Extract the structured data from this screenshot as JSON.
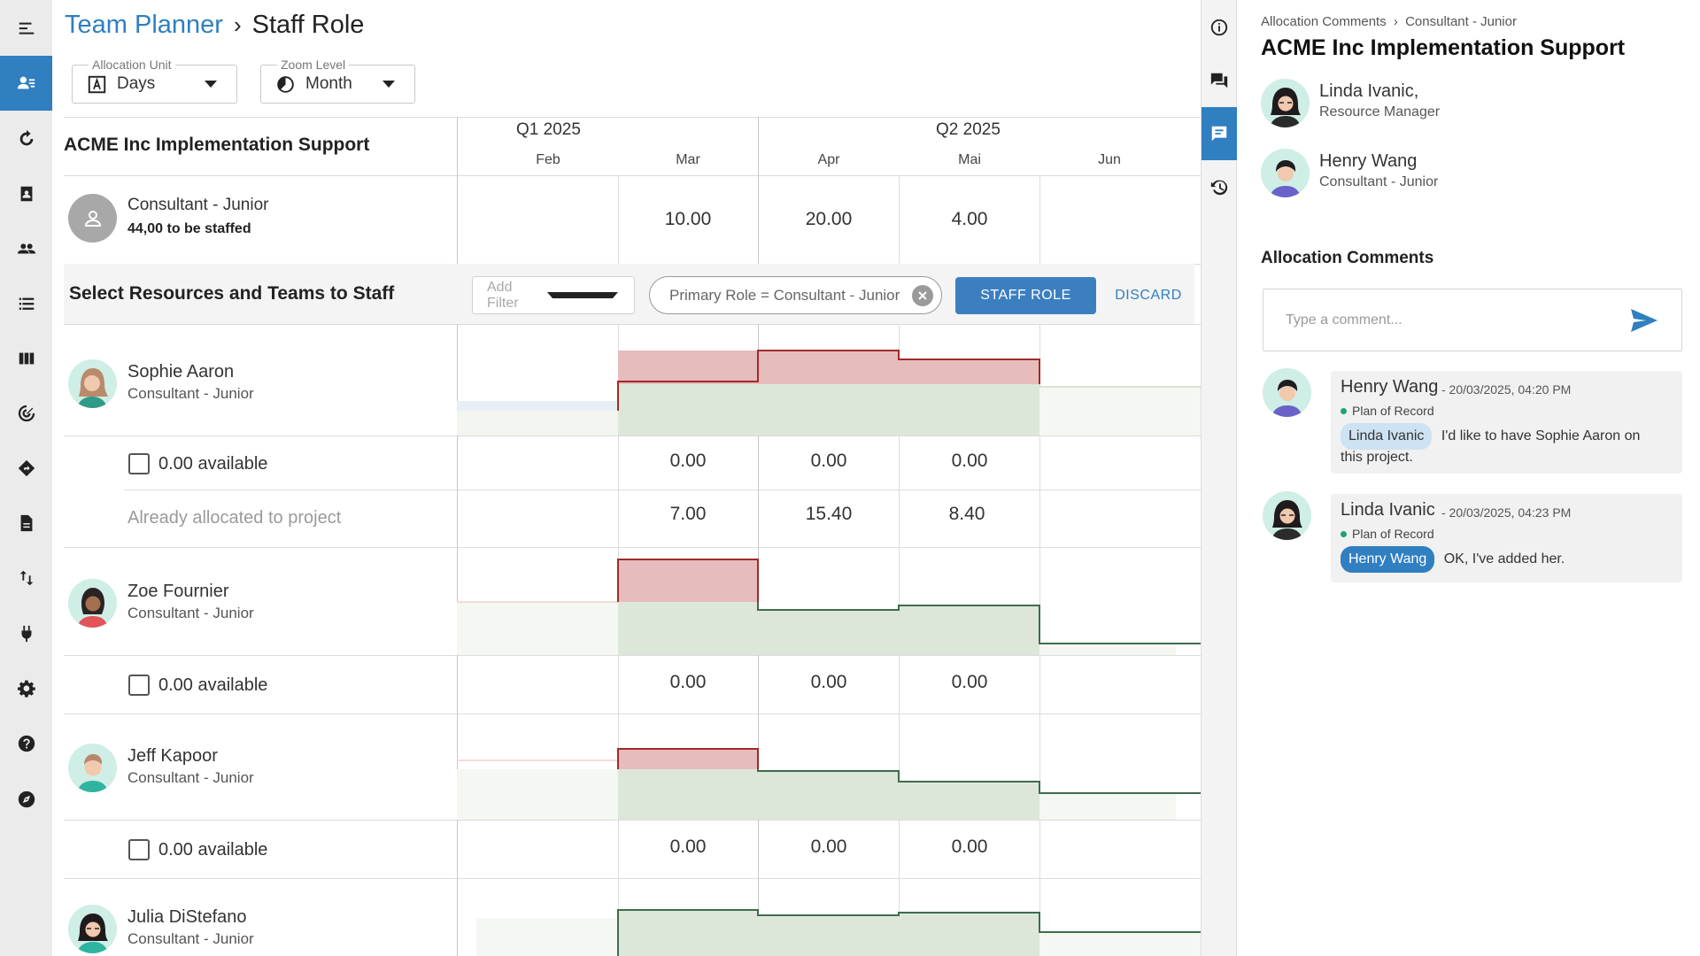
{
  "header": {
    "breadcrumb_root": "Team Planner",
    "breadcrumb_current": "Staff Role",
    "allocation_unit": {
      "label": "Allocation Unit",
      "value": "Days"
    },
    "zoom_level": {
      "label": "Zoom Level",
      "value": "Month"
    }
  },
  "timeline": {
    "quarters": [
      "Q1 2025",
      "Q2 2025"
    ],
    "months": [
      "Feb",
      "Mar",
      "Apr",
      "Mai",
      "Jun"
    ]
  },
  "project": {
    "title": "ACME Inc Implementation Support",
    "role_name": "Consultant - Junior",
    "to_be_staffed": "44,00 to be staffed",
    "role_values": [
      "10.00",
      "20.00",
      "4.00"
    ]
  },
  "staffing": {
    "section_title": "Select Resources and Teams to Staff",
    "add_filter_placeholder": "Add Filter",
    "filter_chip": "Primary Role = Consultant - Junior",
    "staff_role_button": "STAFF ROLE",
    "discard_button": "DISCARD"
  },
  "people": [
    {
      "name": "Sophie Aaron",
      "role": "Consultant - Junior",
      "available_label": "0.00 available",
      "available_values": [
        "0.00",
        "0.00",
        "0.00"
      ],
      "already_label": "Already allocated to project",
      "already_values": [
        "7.00",
        "15.40",
        "8.40"
      ]
    },
    {
      "name": "Zoe Fournier",
      "role": "Consultant - Junior",
      "available_label": "0.00 available",
      "available_values": [
        "0.00",
        "0.00",
        "0.00"
      ]
    },
    {
      "name": "Jeff Kapoor",
      "role": "Consultant - Junior",
      "available_label": "0.00 available",
      "available_values": [
        "0.00",
        "0.00",
        "0.00"
      ]
    },
    {
      "name": "Julia DiStefano",
      "role": "Consultant - Junior"
    }
  ],
  "panel": {
    "breadcrumb_root": "Allocation Comments",
    "breadcrumb_current": "Consultant - Junior",
    "title": "ACME Inc Implementation Support",
    "participants": [
      {
        "name": "Linda Ivanic,",
        "role": "Resource Manager"
      },
      {
        "name": "Henry Wang",
        "role": "Consultant - Junior"
      }
    ],
    "section_title": "Allocation Comments",
    "comment_placeholder": "Type a comment...",
    "comments": [
      {
        "author": "Henry Wang",
        "time": "- 20/03/2025, 04:20 PM",
        "tag": "Plan of Record",
        "mention": "Linda Ivanic",
        "text": "I'd like to have Sophie Aaron on",
        "text_cont": "this project."
      },
      {
        "author": "Linda Ivanic",
        "time": "- 20/03/2025, 04:23 PM",
        "tag": "Plan of Record",
        "mention": "Henry Wang",
        "text": "OK, I've added her."
      }
    ]
  },
  "icons": {
    "rail": [
      "menu-icon",
      "staff-role-icon",
      "refresh-icon",
      "assignment-icon",
      "people-icon",
      "list-icon",
      "columns-icon",
      "target-icon",
      "diamond-icon",
      "document-icon",
      "swap-icon",
      "plug-icon",
      "settings-icon",
      "help-icon",
      "compass-icon"
    ],
    "side": [
      "info-icon",
      "chat-icon",
      "comment-icon",
      "history-icon"
    ]
  },
  "colors": {
    "accent": "#2f7fc1",
    "over_allocation": "#e6bcbc",
    "over_allocation_line": "#a02a2a",
    "capacity": "#dde7d9",
    "capacity_line": "#3f6b4e"
  }
}
